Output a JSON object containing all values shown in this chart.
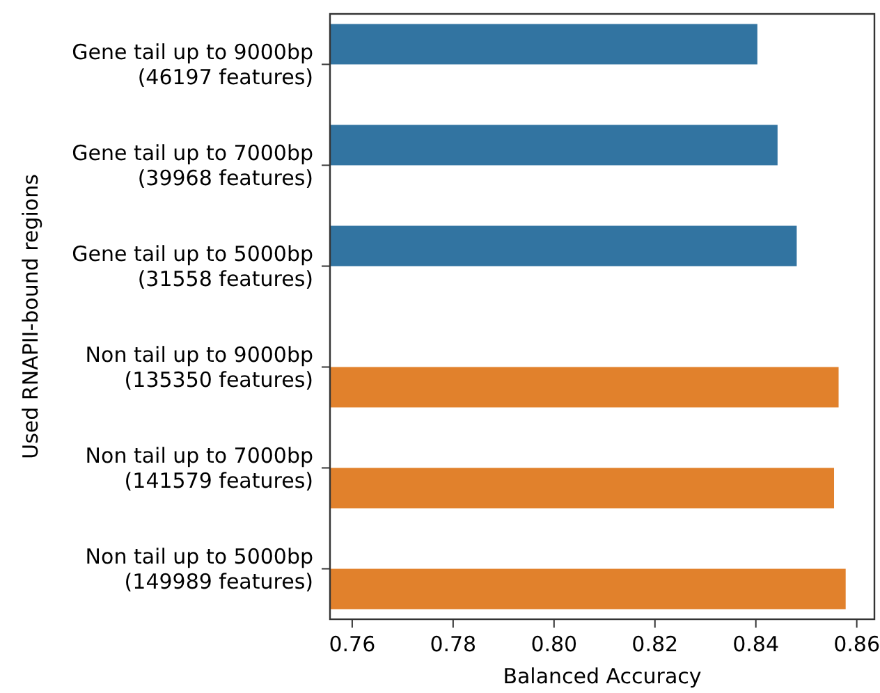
{
  "chart_data": {
    "type": "bar",
    "orientation": "horizontal",
    "xlabel": "Balanced Accuracy",
    "ylabel": "Used RNAPII-bound regions",
    "categories": [
      "Gene tail up to 9000bp\n(46197 features)",
      "Gene tail up to 7000bp\n(39968 features)",
      "Gene tail up to 5000bp\n(31558 features)",
      "Non tail up to 9000bp\n(135350 features)",
      "Non tail up to 7000bp\n(141579 features)",
      "Non tail up to 5000bp\n(149989 features)"
    ],
    "series": [
      {
        "color": "#3274a1",
        "values": [
          0.8403,
          0.8443,
          0.8481,
          null,
          null,
          null
        ]
      },
      {
        "color": "#e1812c",
        "values": [
          null,
          null,
          null,
          0.8564,
          0.8555,
          0.8578
        ]
      }
    ],
    "xlim": [
      0.7556,
      0.8635
    ],
    "xticks": [
      {
        "value": 0.76,
        "label": "0.76"
      },
      {
        "value": 0.78,
        "label": "0.78"
      },
      {
        "value": 0.8,
        "label": "0.80"
      },
      {
        "value": 0.82,
        "label": "0.82"
      },
      {
        "value": 0.84,
        "label": "0.84"
      },
      {
        "value": 0.86,
        "label": "0.86"
      }
    ],
    "grid": false
  }
}
